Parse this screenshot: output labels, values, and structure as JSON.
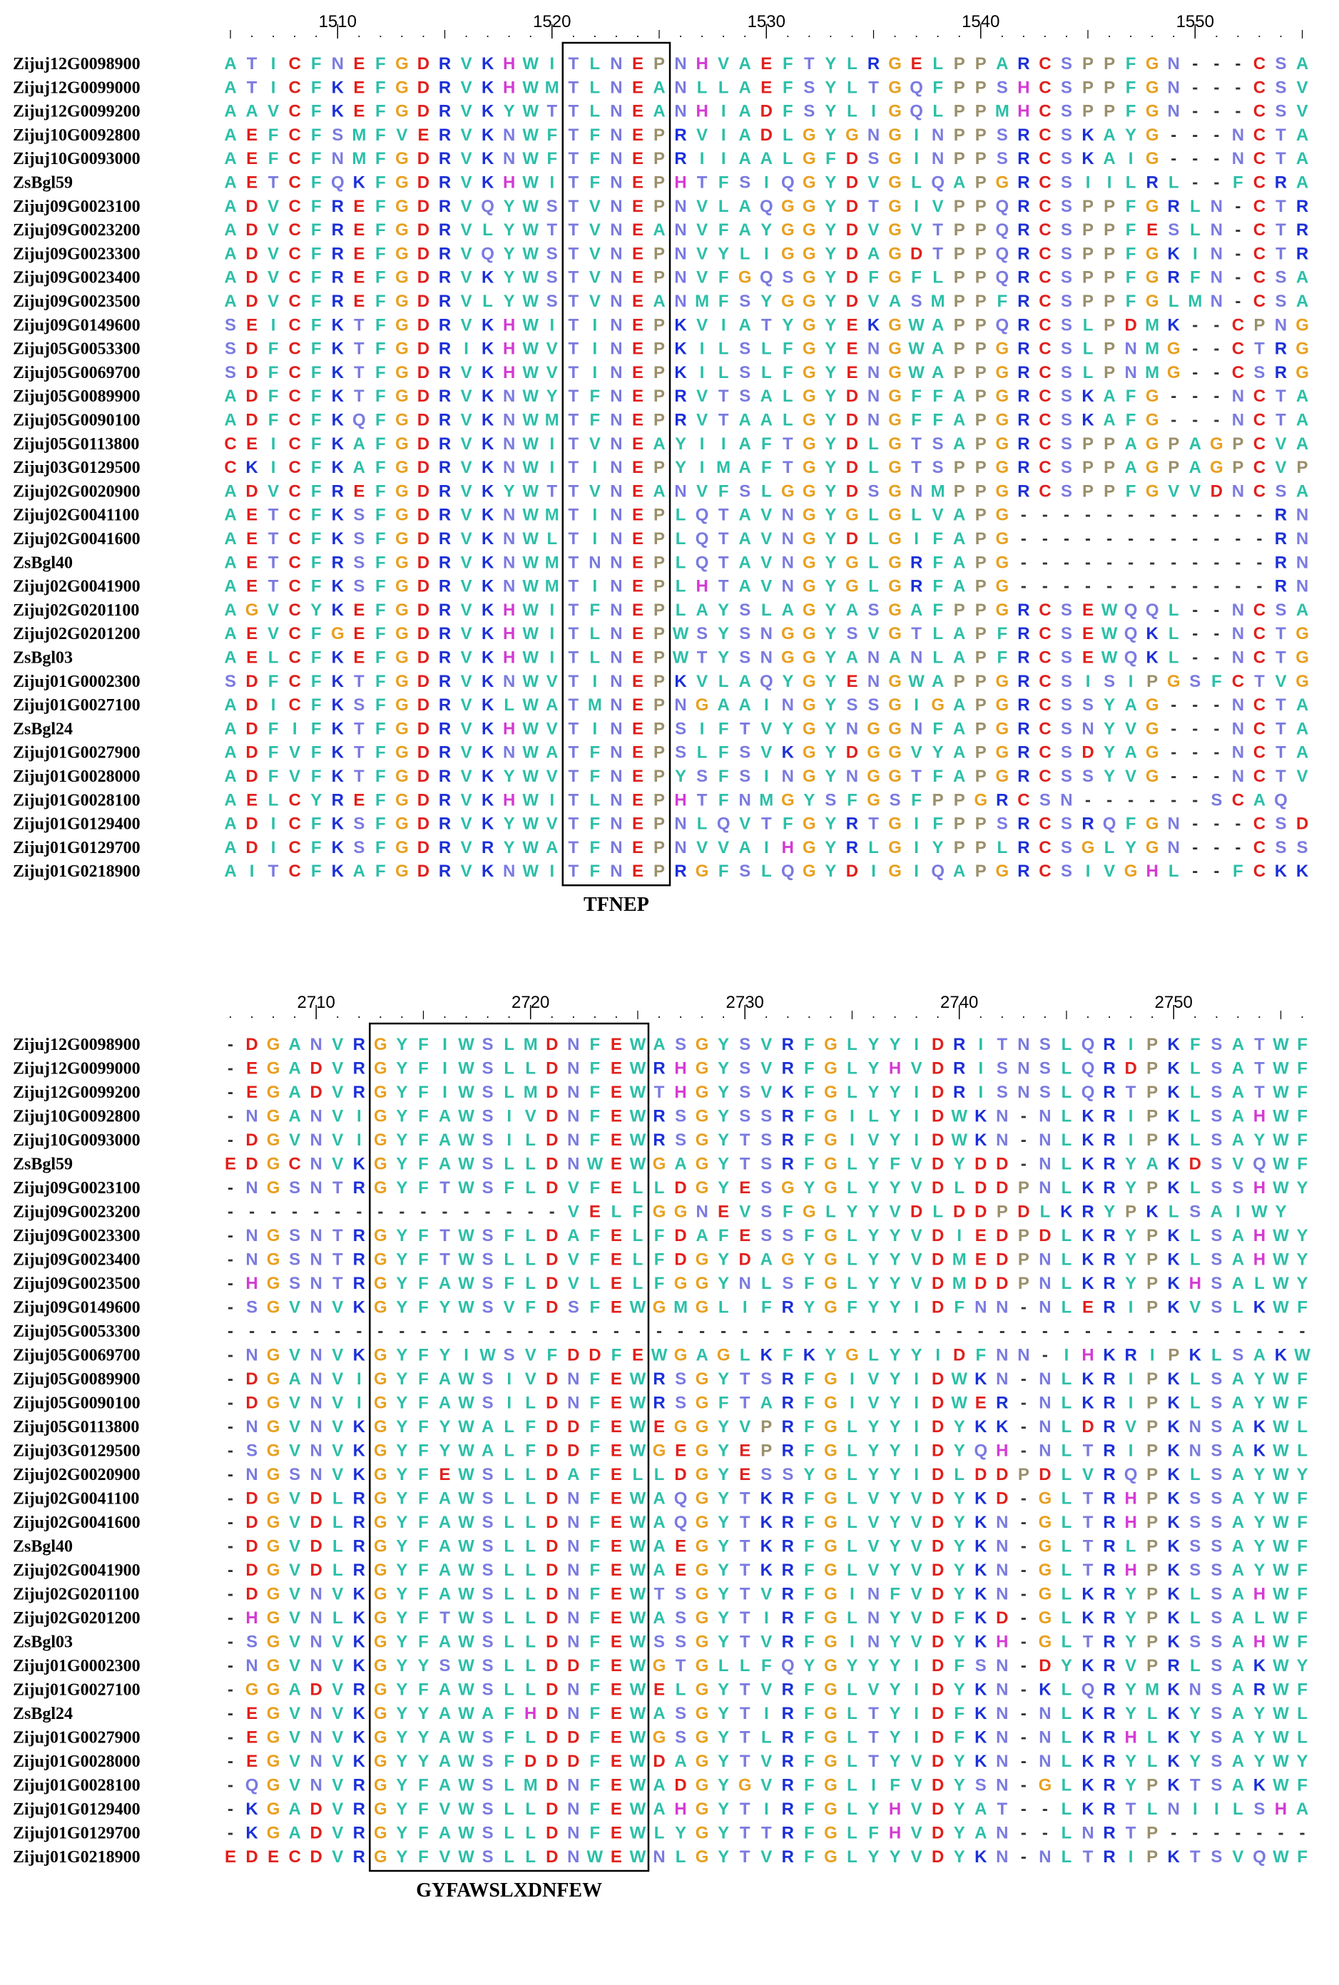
{
  "panels": [
    {
      "ruler_labels": [
        "1510",
        "1520",
        "1530",
        "1540",
        "1550"
      ],
      "motif_label": "TFNEP",
      "sequences": [
        {
          "name": "Zijuj12G0098900",
          "residues": "ATICFNEFGDRVKHWITLNEPNHVAEFTYLRGELPPARCSPPFGN---CSA"
        },
        {
          "name": "Zijuj12G0099000",
          "residues": "ATICFKEFGDRVKHWMTLNEANLLAEFSYLTGQFPPSHCSPPFGN---CSV"
        },
        {
          "name": "Zijuj12G0099200",
          "residues": "AAVCFKEFGDRVKYWTTLNEANHIADFSYLIGQLPPMHCSPPFGN---CSV"
        },
        {
          "name": "Zijuj10G0092800",
          "residues": "AEFCFSMFVERVKNWFTFNEPRVIADLGYGNGINPPSRCSKAYG---NCTA"
        },
        {
          "name": "Zijuj10G0093000",
          "residues": "AEFCFNMFGDRVKNWFTFNEPRIIAALGFDSGINPPSRCSKAIG---NCTA"
        },
        {
          "name": "ZsBgl59",
          "residues": "AETCFQKFGDRVKHWITFNEPHTFSIQGYDVGLQAPGRCSIILRL--FCRA"
        },
        {
          "name": "Zijuj09G0023100",
          "residues": "ADVCFREFGDRVQYWSTVNEPNVLAQGGYDTGIVPPQRCSPPFGRLN-CTR"
        },
        {
          "name": "Zijuj09G0023200",
          "residues": "ADVCFREFGDRVLYWTTVNEANVFAYGGYDVGVTPPQRCSPPFESLN-CTR"
        },
        {
          "name": "Zijuj09G0023300",
          "residues": "ADVCFREFGDRVQYWSTVNEPNVYLIGGYDAGDTPPQRCSPPFGKIN-CTR"
        },
        {
          "name": "Zijuj09G0023400",
          "residues": "ADVCFREFGDRVKYWSTVNEPNVFGQSGYDFGFLPPQRCSPPFGRFN-CSA"
        },
        {
          "name": "Zijuj09G0023500",
          "residues": "ADVCFREFGDRVLYWSTVNEANMFSYGGYDVASMPPFRCSPPFGLMN-CSA"
        },
        {
          "name": "Zijuj09G0149600",
          "residues": "SEICFKTFGDRVKHWITINEPKVIATYGYEKGWAPPQRCSLPDMK--CPNG"
        },
        {
          "name": "Zijuj05G0053300",
          "residues": "SDFCFKTFGDRIKHWVTINEPKILSLFGYENGWAPPGRCSLPNMG--CTRG"
        },
        {
          "name": "Zijuj05G0069700",
          "residues": "SDFCFKTFGDRVKHWVTINEPKILSLFGYENGWAPPGRCSLPNMG--CSRG"
        },
        {
          "name": "Zijuj05G0089900",
          "residues": "ADFCFKTFGDRVKNWYTFNEPRVTSALGYDNGFFAPGRCSKAFG---NCTA"
        },
        {
          "name": "Zijuj05G0090100",
          "residues": "ADFCFKQFGDRVKNWMTFNEPRVTAALGYDNGFFAPGRCSKAFG---NCTA"
        },
        {
          "name": "Zijuj05G0113800",
          "residues": "CEICFKAFGDRVKNWITVNEAYIIAFTGYDLGTSAPGRCSPPAGPAGPCVA"
        },
        {
          "name": "Zijuj03G0129500",
          "residues": "CKICFKAFGDRVKNWITINEPYIMAFTGYDLGTSPPGRCSPPAGPAGPCVP"
        },
        {
          "name": "Zijuj02G0020900",
          "residues": "ADVCFREFGDRVKYWTTVNEANVFSLGGYDSGNMPPGRCSPPFGVVDNCSA"
        },
        {
          "name": "Zijuj02G0041100",
          "residues": "AETCFKSFGDRVKNWMTINEPLQTAVNGYGLGLVAPG------------RN"
        },
        {
          "name": "Zijuj02G0041600",
          "residues": "AETCFKSFGDRVKNWLTINEPLQTAVNGYDLGIFAPG------------RN"
        },
        {
          "name": "ZsBgl40",
          "residues": "AETCFRSFGDRVKNWMTNNEPLQTAVNGYGLGRFAPG------------RN"
        },
        {
          "name": "Zijuj02G0041900",
          "residues": "AETCFKSFGDRVKNWMTINEPLHTAVNGYGLGRFAPG------------RN"
        },
        {
          "name": "Zijuj02G0201100",
          "residues": "AGVCYKEFGDRVKHWITFNEPLAYSLAGYASGAFPPGRCSEWQQL--NCSA"
        },
        {
          "name": "Zijuj02G0201200",
          "residues": "AEVCFGEFGDRVKHWITLNEPWSYSNGGYSVGTLAPFRCSEWQKL--NCTG"
        },
        {
          "name": "ZsBgl03",
          "residues": "AELCFKEFGDRVKHWITLNEPWTYSNGGYANANLAPFRCSEWQKL--NCTG"
        },
        {
          "name": "Zijuj01G0002300",
          "residues": "SDFCFKTFGDRVKNWVTINEPKVLAQYGYENGWAPPGRCSISIPGSFCTVG"
        },
        {
          "name": "Zijuj01G0027100",
          "residues": "ADICFKSFGDRVKLWATMNEPNGAAINGYSSGIGAPGRCSSYAG---NCTA"
        },
        {
          "name": "ZsBgl24",
          "residues": "ADFIFKTFGDRVKHWVTINEPSIFTVYGYNGGNFAPGRCSNYVG---NCTA"
        },
        {
          "name": "Zijuj01G0027900",
          "residues": "ADFVFKTFGDRVKNWATFNEPSLFSVKGYDGGVYAPGRCSDYAG---NCTA"
        },
        {
          "name": "Zijuj01G0028000",
          "residues": "ADFVFKTFGDRVKYWVTFNEPYSFSINGYNGGTFAPGRCSSYVG---NCTV"
        },
        {
          "name": "Zijuj01G0028100",
          "residues": "AELCYREFGDRVKHWITLNEPHTFNMGYSFGSFPPGRCSN------SCAQ"
        },
        {
          "name": "Zijuj01G0129400",
          "residues": "ADICFKSFGDRVKYWVTFNEPNLQVTFGYRTGIFPPSRCSRQFGN---CSD"
        },
        {
          "name": "Zijuj01G0129700",
          "residues": "ADICFKSFGDRVRYWATFNEPNVVAIHGYRLGIYPPLRCSGLYGN---CSS"
        },
        {
          "name": "Zijuj01G0218900",
          "residues": "AITCFKAFGDRVKNWITFNEPRGFSLQGYDIGIQAPGRCSIVGHL--FCKK"
        }
      ]
    },
    {
      "ruler_labels": [
        "2710",
        "2720",
        "2730",
        "2740",
        "2750"
      ],
      "motif_label": "GYFAWSLXDNFEW",
      "sequences": [
        {
          "name": "Zijuj12G0098900",
          "residues": "-DGANVRGYFIWSLMDNFEWASGYSVRFGLYYIDRITNSLQRIPKFSATWF"
        },
        {
          "name": "Zijuj12G0099000",
          "residues": "-EGADVRGYFIWSLLDNFEWRHGYSVRFGLYHVDRISNSLQRDPKLSATWF"
        },
        {
          "name": "Zijuj12G0099200",
          "residues": "-EGADVRGYFIWSLMDNFEWTHGYSVKFGLYYIDRISNSLQRTPKLSATWF"
        },
        {
          "name": "Zijuj10G0092800",
          "residues": "-NGANVIGYFAWSIVDNFEWRSGYSSRFGILYIDWKN-NLKRIPKLSAHWF"
        },
        {
          "name": "Zijuj10G0093000",
          "residues": "-DGVNVIGYFAWSILDNFEWRSGYTSRFGIVYIDWKN-NLKRIPKLSAYWF"
        },
        {
          "name": "ZsBgl59",
          "residues": "EDGCNVKGYFAWSLLDNWEWGAGYTSRFGLYFVDYDD-NLKRYAKDSVQWF"
        },
        {
          "name": "Zijuj09G0023100",
          "residues": "-NGSNTRGYFTWSFLDVFELLDGYESGYGLYYVDLDDPNLKRYPKLSSHWY"
        },
        {
          "name": "Zijuj09G0023200",
          "residues": "----------------VELFGGNEVSFGLYYVDLDDPDLKRYPKLSAIWY"
        },
        {
          "name": "Zijuj09G0023300",
          "residues": "-NGSNTRGYFTWSFLDAFELFDAFESSFGLYYVDIEDPDLKRYPKLSAHWY"
        },
        {
          "name": "Zijuj09G0023400",
          "residues": "-NGSNTRGYFTWSLLDVFELFDGYDAGYGLYYVDMEDPNLKRYPKLSAHWY"
        },
        {
          "name": "Zijuj09G0023500",
          "residues": "-HGSNTRGYFAWSFLDVLELFGGYNLSFGLYYVDMDDPNLKRYPKHSALWY"
        },
        {
          "name": "Zijuj09G0149600",
          "residues": "-SGVNVKGYFYWSVFDSFEWGMGLIFRYGFYYIDFNN-NLERIPKVSLKWF"
        },
        {
          "name": "Zijuj05G0053300",
          "residues": "---------------------------------------------------"
        },
        {
          "name": "Zijuj05G0069700",
          "residues": "-NGVNVKGYFYIWSVFDDFEWGAGLKFKYGLYYIDFNN-IHKRIPKLSAKWY"
        },
        {
          "name": "Zijuj05G0089900",
          "residues": "-DGANVIGYFAWSIVDNFEWRSGYTSRFGIVYIDWKN-NLKRIPKLSAYWF"
        },
        {
          "name": "Zijuj05G0090100",
          "residues": "-DGVNVIGYFAWSILDNFEWRSGFTARFGIVYIDWER-NLKRIPKLSAYWF"
        },
        {
          "name": "Zijuj05G0113800",
          "residues": "-NGVNVKGYFYWALFDDFEWEGGYVPRFGLYYIDYKK-NLDRVPKNSAKWL"
        },
        {
          "name": "Zijuj03G0129500",
          "residues": "-SGVNVKGYFYWALFDDFEWGEGYEPRFGLYYIDYQH-NLTRIPKNSAKWL"
        },
        {
          "name": "Zijuj02G0020900",
          "residues": "-NGSNVKGYFEWSLLDAFELLDGYESSYGLYYIDLDDPDLVRQPKLSAYWY"
        },
        {
          "name": "Zijuj02G0041100",
          "residues": "-DGVDLRGYFAWSLLDNFEWAQGYTKRFGLVYVDYKD-GLTRHPKSSAYWF"
        },
        {
          "name": "Zijuj02G0041600",
          "residues": "-DGVDLRGYFAWSLLDNFEWAQGYTKRFGLVYVDYKN-GLTRHPKSSAYWF"
        },
        {
          "name": "ZsBgl40",
          "residues": "-DGVDLRGYFAWSLLDNFEWAEGYTKRFGLVYVDYKN-GLTRLPKSSAYWF"
        },
        {
          "name": "Zijuj02G0041900",
          "residues": "-DGVDLRGYFAWSLLDNFEWAEGYTKRFGLVYVDYKN-GLTRHPKSSAYWF"
        },
        {
          "name": "Zijuj02G0201100",
          "residues": "-DGVNVKGYFAWSLLDNFEWTSGYTVRFGINFVDYKN-GLKRYPKLSAHWF"
        },
        {
          "name": "Zijuj02G0201200",
          "residues": "-HGVNLKGYFTWSLLDNFEWASGYTIRFGLNYVDFKD-GLKRYPKLSALWF"
        },
        {
          "name": "ZsBgl03",
          "residues": "-SGVNVKGYFAWSLLDNFEWSSGYTVRFGINYVDYKH-GLTRYPKSSAHWF"
        },
        {
          "name": "Zijuj01G0002300",
          "residues": "-NGVNVKGYYSWSLLDDFEWGTGLLFQYGYYYIDFSN-DYKRVPRLSAKWY"
        },
        {
          "name": "Zijuj01G0027100",
          "residues": "-GGADVRGYFAWSLLDNFEWELGYTVRFGLVYIDYKN-KLQRYMKNSARWF"
        },
        {
          "name": "ZsBgl24",
          "residues": "-EGVNVKGYYAWAFHDNFEWASGYTIRFGLTYIDFKN-NLKRYLKYSAYWL"
        },
        {
          "name": "Zijuj01G0027900",
          "residues": "-EGVNVKGYYAWSFLDDFEWGSGYTLRFGLTYIDFKN-NLKRHLKYSAYWL"
        },
        {
          "name": "Zijuj01G0028000",
          "residues": "-EGVNVKGYYAWSFDDDFEWDAGYTVRFGLTYVDYKN-NLKRYLKYSAYWY"
        },
        {
          "name": "Zijuj01G0028100",
          "residues": "-QGVNVRGYFAWSLMDNFEWADGYGVRFGLIFVDYSN-GLKRYPKTSAKWF"
        },
        {
          "name": "Zijuj01G0129400",
          "residues": "-KGADVRGYFVWSLLDNFEWAHGYTIRFGLYHVDYAT--LKRTLNIILSHA"
        },
        {
          "name": "Zijuj01G0129700",
          "residues": "-KGADVRGYFAWSLLDNFEWLYGYTTRFGLFHVDYAN--LNRTP-------"
        },
        {
          "name": "Zijuj01G0218900",
          "residues": "EDECDVRGYFVWSLLDNWEWNLGYTVRFGLYYVDYKN-NLTRIPKTSVQWF"
        }
      ]
    }
  ],
  "residue_colors": {
    "A": "#2bbfa8",
    "C": "#e0201c",
    "D": "#e0201c",
    "E": "#e0201c",
    "F": "#2bbfa8",
    "G": "#e8a020",
    "H": "#d43ad4",
    "I": "#2bbfa8",
    "K": "#1b2fd8",
    "L": "#2bbfa8",
    "M": "#2bbfa8",
    "N": "#7a7ae0",
    "P": "#9a8f6a",
    "Q": "#7a7ae0",
    "R": "#1b2fd8",
    "S": "#7a7ae0",
    "T": "#7a7ae0",
    "V": "#2bbfa8",
    "W": "#2bbfa8",
    "Y": "#2bbfa8",
    "-": "#333333"
  },
  "motif_columns": [
    [
      16,
      20
    ],
    [
      7,
      19
    ]
  ]
}
